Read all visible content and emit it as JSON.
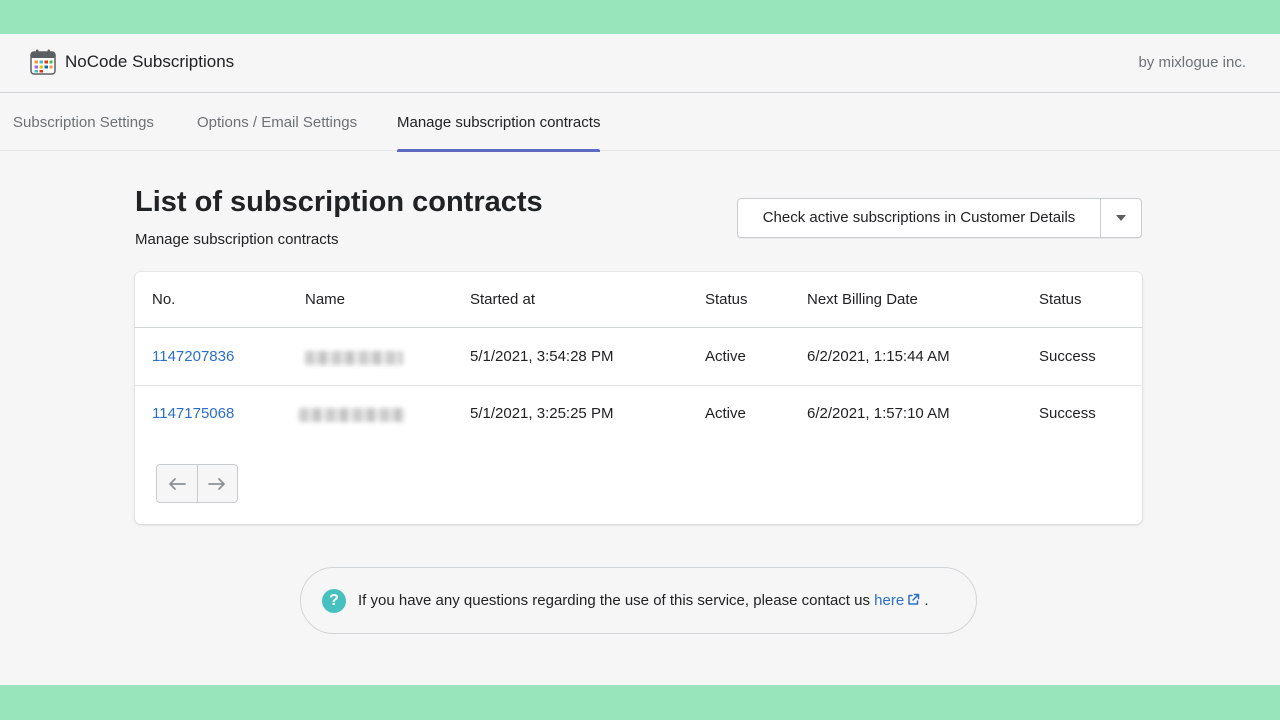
{
  "app": {
    "title": "NoCode Subscriptions",
    "vendor": "by mixlogue inc.",
    "logo_icon": "calendar-icon"
  },
  "tabs": [
    {
      "label": "Subscription Settings",
      "active": false
    },
    {
      "label": "Options / Email Settings",
      "active": false
    },
    {
      "label": "Manage subscription contracts",
      "active": true
    }
  ],
  "page": {
    "title": "List of subscription contracts",
    "subtitle": "Manage subscription contracts",
    "action_label": "Check active subscriptions in Customer Details",
    "action_menu_icon": "caret-down-icon"
  },
  "table": {
    "columns": [
      "No.",
      "Name",
      "Started at",
      "Status",
      "Next Billing Date",
      "Status"
    ],
    "rows": [
      {
        "no": "1147207836",
        "name": "",
        "started_at": "5/1/2021, 3:54:28 PM",
        "status": "Active",
        "next_billing": "6/2/2021, 1:15:44 AM",
        "billing_status": "Success"
      },
      {
        "no": "1147175068",
        "name": "",
        "started_at": "5/1/2021, 3:25:25 PM",
        "status": "Active",
        "next_billing": "6/2/2021, 1:57:10 AM",
        "billing_status": "Success"
      }
    ]
  },
  "pagination": {
    "prev_icon": "arrow-left-icon",
    "next_icon": "arrow-right-icon"
  },
  "footer": {
    "help_text": "If you have any questions regarding the use of this service, please contact us",
    "link_label": "here",
    "trailing": ".",
    "help_icon": "question-circle-icon",
    "link_icon": "external-link-icon"
  },
  "colors": {
    "band": "#98e4bb",
    "tab_indicator": "#5c6ac4",
    "link": "#2c6ecb",
    "help_icon": "#47c1bf"
  }
}
